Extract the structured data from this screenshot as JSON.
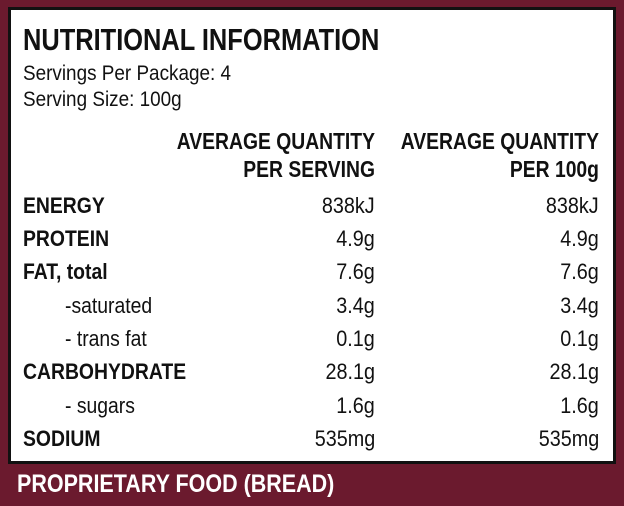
{
  "panel": {
    "title": "NUTRITIONAL INFORMATION",
    "servings_per_package": "Servings Per Package: 4",
    "serving_size": "Serving Size: 100g"
  },
  "columns": [
    {
      "line1": "AVERAGE QUANTITY",
      "line2": "PER SERVING"
    },
    {
      "line1": "AVERAGE QUANTITY",
      "line2": "PER 100g"
    }
  ],
  "rows": [
    {
      "label": "ENERGY",
      "per_serving": "838kJ",
      "per_100g": "838kJ",
      "bold": true
    },
    {
      "label": "PROTEIN",
      "per_serving": "4.9g",
      "per_100g": "4.9g",
      "bold": true
    },
    {
      "label": "FAT, total",
      "per_serving": "7.6g",
      "per_100g": "7.6g",
      "bold": true
    },
    {
      "label": "-saturated",
      "per_serving": "3.4g",
      "per_100g": "3.4g",
      "bold": false
    },
    {
      "label": "- trans fat",
      "per_serving": "0.1g",
      "per_100g": "0.1g",
      "bold": false
    },
    {
      "label": "CARBOHYDRATE",
      "per_serving": "28.1g",
      "per_100g": "28.1g",
      "bold": true
    },
    {
      "label": "- sugars",
      "per_serving": "1.6g",
      "per_100g": "1.6g",
      "bold": false
    },
    {
      "label": "SODIUM",
      "per_serving": "535mg",
      "per_100g": "535mg",
      "bold": true
    }
  ],
  "footer": {
    "text": "PROPRIETARY FOOD (BREAD)"
  },
  "colors": {
    "background": "#6b1a2e",
    "panel": "#ffffff",
    "text": "#111111",
    "footer_text": "#ffffff"
  }
}
